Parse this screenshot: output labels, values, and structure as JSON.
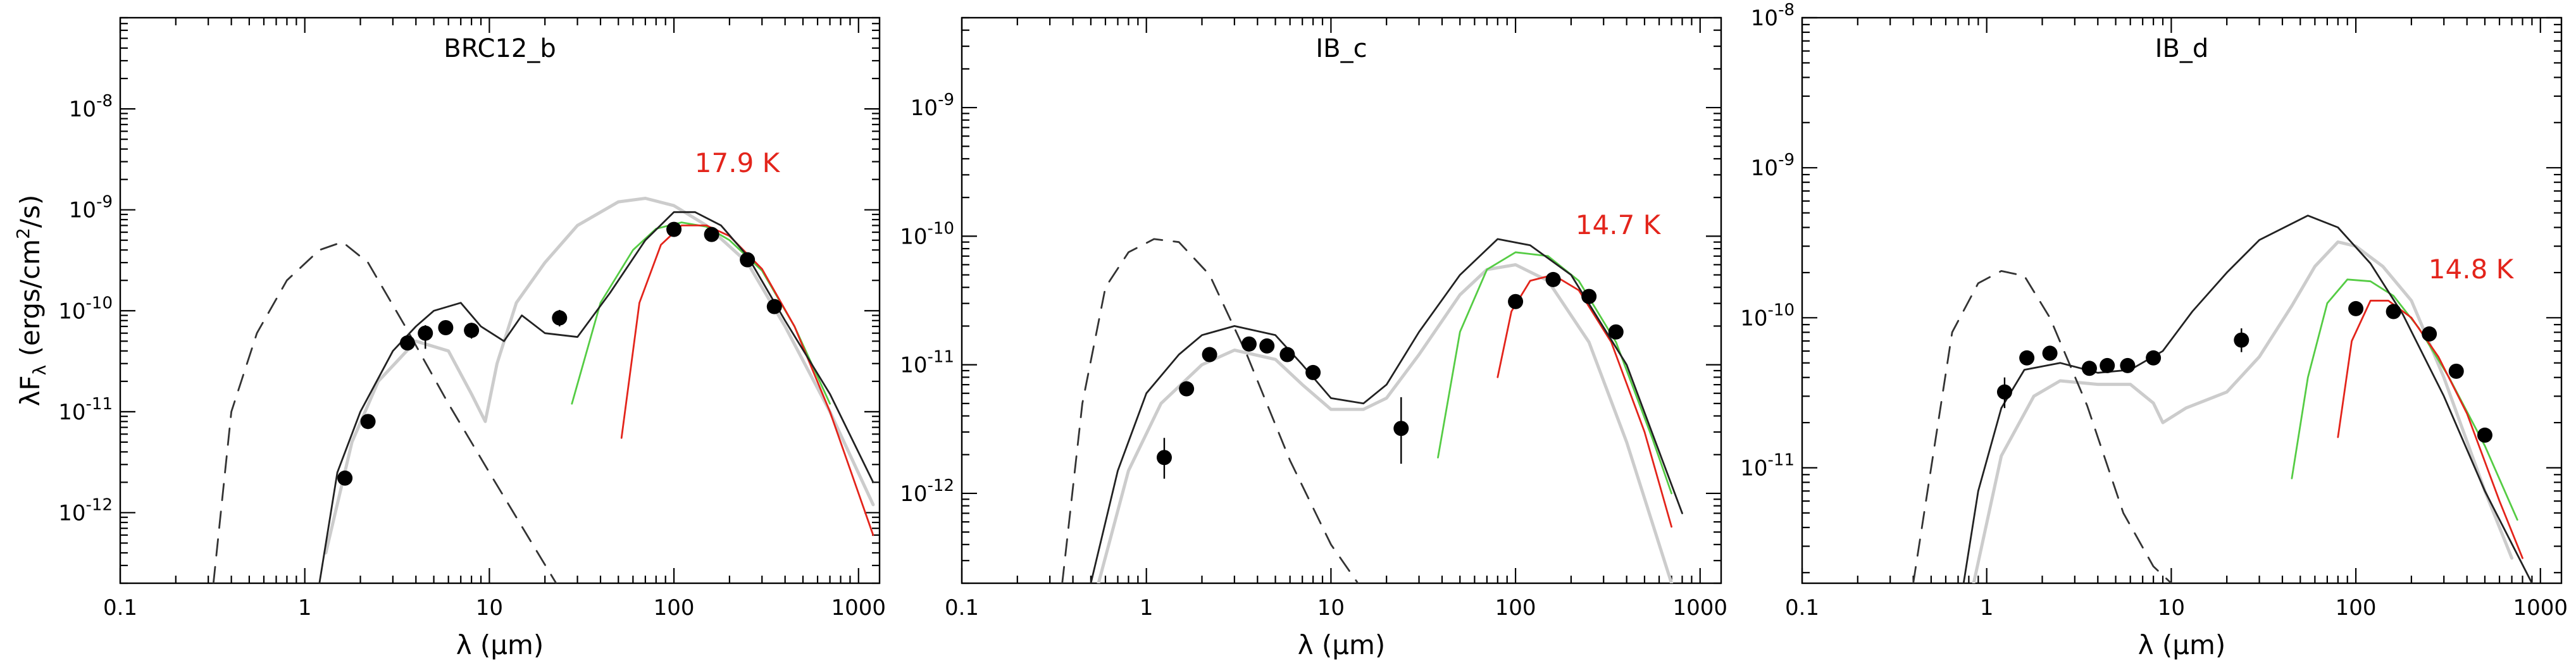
{
  "chart_data": [
    {
      "type": "line",
      "title": "BRC12_b",
      "temperature_label": "17.9 K",
      "xlabel": "λ (μm)",
      "ylabel": "λFλ (ergs/cm²/s)",
      "xscale": "log",
      "yscale": "log",
      "xlim": [
        0.1,
        1300
      ],
      "ylim": [
        2e-13,
        8e-08
      ],
      "x_ticks": [
        0.1,
        1,
        10,
        100,
        1000
      ],
      "x_tick_labels": [
        "0.1",
        "1",
        "10",
        "100",
        "1000"
      ],
      "y_ticks": [
        1e-12,
        1e-11,
        1e-10,
        1e-09,
        1e-08
      ],
      "y_tick_labels": [
        {
          "base": "10",
          "exp": "-12"
        },
        {
          "base": "10",
          "exp": "-11"
        },
        {
          "base": "10",
          "exp": "-10"
        },
        {
          "base": "10",
          "exp": "-9"
        },
        {
          "base": "10",
          "exp": "-8"
        }
      ],
      "series": [
        {
          "name": "stellar photosphere",
          "style": "dashed",
          "color": "#333333",
          "x": [
            0.32,
            0.4,
            0.55,
            0.8,
            1.2,
            1.6,
            2.2,
            3.5,
            6,
            10,
            16,
            23
          ],
          "y": [
            2e-13,
            1e-11,
            6e-11,
            2e-10,
            4e-10,
            4.8e-10,
            3e-10,
            7e-11,
            1.2e-11,
            2.5e-12,
            6e-13,
            2e-13
          ]
        },
        {
          "name": "best-fit model",
          "style": "solid",
          "color": "#222222",
          "x": [
            1.2,
            1.5,
            2,
            3,
            4,
            5,
            7,
            9,
            12,
            15,
            20,
            30,
            45,
            70,
            100,
            130,
            180,
            250,
            400,
            700,
            1200
          ],
          "y": [
            2e-13,
            2.5e-12,
            1e-11,
            4e-11,
            7e-11,
            1e-10,
            1.2e-10,
            7e-11,
            5e-11,
            9e-11,
            6e-11,
            5.5e-11,
            1.5e-10,
            5e-10,
            9.5e-10,
            9.5e-10,
            7e-10,
            3.5e-10,
            8e-11,
            1.5e-11,
            2e-12
          ]
        },
        {
          "name": "alternative model",
          "style": "solid",
          "color": "#cccccc",
          "x": [
            1.3,
            1.8,
            2.5,
            4,
            6,
            8,
            9.5,
            11,
            14,
            20,
            30,
            50,
            70,
            100,
            150,
            250,
            400,
            700,
            1200
          ],
          "y": [
            4e-13,
            5e-12,
            2e-11,
            5e-11,
            4e-11,
            1.5e-11,
            8e-12,
            3e-11,
            1.2e-10,
            3e-10,
            7e-10,
            1.2e-09,
            1.3e-09,
            1.1e-09,
            7e-10,
            3e-10,
            7e-11,
            1e-11,
            1.2e-12
          ]
        },
        {
          "name": "greybody fit (green)",
          "style": "solid",
          "color": "#55cc44",
          "x": [
            28,
            40,
            60,
            80,
            110,
            150,
            200,
            300,
            450,
            700
          ],
          "y": [
            1.2e-11,
            1.2e-10,
            4e-10,
            6.5e-10,
            7.5e-10,
            6.8e-10,
            5e-10,
            2.5e-10,
            7e-11,
            1.2e-11
          ]
        },
        {
          "name": "greybody fit (red)",
          "style": "solid",
          "color": "#e3241b",
          "x": [
            52,
            65,
            85,
            110,
            150,
            200,
            300,
            450,
            700,
            1200
          ],
          "y": [
            5.5e-12,
            1.2e-10,
            4.5e-10,
            7e-10,
            7e-10,
            5.5e-10,
            2.6e-10,
            7e-11,
            1e-11,
            6e-13
          ]
        }
      ],
      "points": {
        "x": [
          1.65,
          2.2,
          3.6,
          4.5,
          5.8,
          8,
          24,
          100,
          160,
          250,
          350
        ],
        "y": [
          2.2e-12,
          8e-12,
          4.8e-11,
          6e-11,
          6.8e-11,
          6.4e-11,
          8.5e-11,
          6.4e-10,
          5.7e-10,
          3.2e-10,
          1.1e-10
        ],
        "err_lo": [
          null,
          null,
          null,
          4.2e-11,
          null,
          5.3e-11,
          7e-11,
          null,
          null,
          null,
          null
        ],
        "err_hi": [
          null,
          null,
          null,
          7.2e-11,
          null,
          7.6e-11,
          1.02e-10,
          null,
          null,
          null,
          null
        ]
      }
    },
    {
      "type": "line",
      "title": "IB_c",
      "temperature_label": "14.7 K",
      "xlabel": "λ (μm)",
      "ylabel": "",
      "xscale": "log",
      "yscale": "log",
      "xlim": [
        0.1,
        1300
      ],
      "ylim": [
        2e-13,
        5e-09
      ],
      "x_ticks": [
        0.1,
        1,
        10,
        100,
        1000
      ],
      "x_tick_labels": [
        "0.1",
        "1",
        "10",
        "100",
        "1000"
      ],
      "y_ticks": [
        1e-12,
        1e-11,
        1e-10,
        1e-09
      ],
      "y_tick_labels": [
        {
          "base": "10",
          "exp": "-12"
        },
        {
          "base": "10",
          "exp": "-11"
        },
        {
          "base": "10",
          "exp": "-10"
        },
        {
          "base": "10",
          "exp": "-9"
        }
      ],
      "series": [
        {
          "name": "stellar photosphere",
          "style": "dashed",
          "color": "#333333",
          "x": [
            0.35,
            0.45,
            0.6,
            0.8,
            1.1,
            1.5,
            2.2,
            3.5,
            6,
            10,
            14
          ],
          "y": [
            2e-13,
            5e-12,
            4e-11,
            7.5e-11,
            9.5e-11,
            9e-11,
            5e-11,
            1.2e-11,
            1.8e-12,
            4e-13,
            2e-13
          ]
        },
        {
          "name": "best-fit model",
          "style": "solid",
          "color": "#222222",
          "x": [
            0.5,
            0.7,
            1,
            1.5,
            2,
            3,
            5,
            7,
            10,
            15,
            20,
            30,
            50,
            80,
            120,
            200,
            400,
            800
          ],
          "y": [
            2e-13,
            1.5e-12,
            6e-12,
            1.2e-11,
            1.7e-11,
            2e-11,
            1.7e-11,
            1e-11,
            5.5e-12,
            5e-12,
            7e-12,
            1.8e-11,
            5e-11,
            9.5e-11,
            8.5e-11,
            5e-11,
            1e-11,
            7e-13
          ]
        },
        {
          "name": "alternative model",
          "style": "solid",
          "color": "#cccccc",
          "x": [
            0.55,
            0.8,
            1.2,
            2,
            3,
            5,
            7,
            10,
            15,
            20,
            30,
            50,
            70,
            100,
            150,
            250,
            400,
            700
          ],
          "y": [
            2e-13,
            1.5e-12,
            5e-12,
            1e-11,
            1.3e-11,
            1.1e-11,
            7e-12,
            4.5e-12,
            4.5e-12,
            5.5e-12,
            1.2e-11,
            3.5e-11,
            5.5e-11,
            6e-11,
            4.5e-11,
            1.5e-11,
            2.5e-12,
            2e-13
          ]
        },
        {
          "name": "greybody fit (green)",
          "style": "solid",
          "color": "#55cc44",
          "x": [
            38,
            50,
            70,
            100,
            150,
            220,
            350,
            550,
            700
          ],
          "y": [
            1.9e-12,
            1.8e-11,
            5.5e-11,
            7.5e-11,
            7e-11,
            4.5e-11,
            1.5e-11,
            2.7e-12,
            1e-12
          ]
        },
        {
          "name": "greybody fit (red)",
          "style": "solid",
          "color": "#e3241b",
          "x": [
            80,
            95,
            120,
            160,
            220,
            330,
            500,
            700
          ],
          "y": [
            8e-12,
            2.6e-11,
            4.5e-11,
            5e-11,
            3.8e-11,
            1.5e-11,
            3e-12,
            5.5e-13
          ]
        }
      ],
      "points": {
        "x": [
          1.25,
          1.65,
          2.2,
          3.6,
          4.5,
          5.8,
          8,
          24,
          100,
          160,
          250,
          350
        ],
        "y": [
          1.9e-12,
          6.5e-12,
          1.2e-11,
          1.45e-11,
          1.4e-11,
          1.2e-11,
          8.7e-12,
          3.2e-12,
          3.1e-11,
          4.6e-11,
          3.4e-11,
          1.8e-11
        ],
        "err_lo": [
          1.3e-12,
          null,
          null,
          null,
          null,
          null,
          null,
          1.7e-12,
          null,
          null,
          null,
          null
        ],
        "err_hi": [
          2.7e-12,
          null,
          null,
          null,
          null,
          null,
          null,
          5.6e-12,
          null,
          null,
          null,
          null
        ]
      }
    },
    {
      "type": "line",
      "title": "IB_d",
      "temperature_label": "14.8 K",
      "xlabel": "λ (μm)",
      "ylabel": "",
      "xscale": "log",
      "yscale": "log",
      "xlim": [
        0.1,
        1300
      ],
      "ylim": [
        1.7e-12,
        1e-08
      ],
      "x_ticks": [
        0.1,
        1,
        10,
        100,
        1000
      ],
      "x_tick_labels": [
        "0.1",
        "1",
        "10",
        "100",
        "1000"
      ],
      "y_ticks": [
        1e-11,
        1e-10,
        1e-09,
        1e-08
      ],
      "y_tick_labels": [
        {
          "base": "10",
          "exp": "-11"
        },
        {
          "base": "10",
          "exp": "-10"
        },
        {
          "base": "10",
          "exp": "-9"
        },
        {
          "base": "10",
          "exp": "-8"
        }
      ],
      "series": [
        {
          "name": "stellar photosphere",
          "style": "dashed",
          "color": "#333333",
          "x": [
            0.4,
            0.5,
            0.65,
            0.9,
            1.2,
            1.6,
            2.2,
            3.5,
            5.5,
            8,
            10
          ],
          "y": [
            1.7e-12,
            1e-11,
            8e-11,
            1.7e-10,
            2.05e-10,
            1.9e-10,
            1e-10,
            2.6e-11,
            5e-12,
            2.2e-12,
            1.7e-12
          ]
        },
        {
          "name": "best-fit model",
          "style": "solid",
          "color": "#222222",
          "x": [
            0.75,
            0.9,
            1.2,
            1.6,
            2.5,
            4,
            6,
            9,
            13,
            20,
            30,
            55,
            80,
            120,
            180,
            300,
            500,
            900
          ],
          "y": [
            1.7e-12,
            7e-12,
            2.5e-11,
            4.5e-11,
            5e-11,
            4.3e-11,
            4.5e-11,
            6e-11,
            1.1e-10,
            2e-10,
            3.3e-10,
            4.8e-10,
            4e-10,
            2.3e-10,
            1.05e-10,
            3e-11,
            7e-12,
            1.7e-12
          ]
        },
        {
          "name": "alternative model",
          "style": "solid",
          "color": "#cccccc",
          "x": [
            0.85,
            1.2,
            1.8,
            2.5,
            4,
            6,
            8,
            9,
            12,
            20,
            30,
            45,
            60,
            80,
            100,
            140,
            200,
            300,
            500,
            700
          ],
          "y": [
            1.7e-12,
            1.2e-11,
            3e-11,
            3.8e-11,
            3.6e-11,
            3.6e-11,
            2.7e-11,
            2e-11,
            2.5e-11,
            3.2e-11,
            5.5e-11,
            1.2e-10,
            2.2e-10,
            3.2e-10,
            3e-10,
            2.2e-10,
            1.3e-10,
            4e-11,
            7e-12,
            2.5e-12
          ]
        },
        {
          "name": "greybody fit (green)",
          "style": "solid",
          "color": "#55cc44",
          "x": [
            45,
            55,
            70,
            90,
            120,
            160,
            220,
            320,
            500,
            750
          ],
          "y": [
            8.5e-12,
            4e-11,
            1.25e-10,
            1.8e-10,
            1.75e-10,
            1.4e-10,
            8.5e-11,
            4e-11,
            1.4e-11,
            4.5e-12
          ]
        },
        {
          "name": "greybody fit (red)",
          "style": "solid",
          "color": "#e3241b",
          "x": [
            80,
            95,
            120,
            150,
            200,
            280,
            400,
            600,
            800
          ],
          "y": [
            1.6e-11,
            7e-11,
            1.3e-10,
            1.3e-10,
            1e-10,
            5.5e-11,
            2.3e-11,
            6e-12,
            2.5e-12
          ]
        }
      ],
      "points": {
        "x": [
          1.25,
          1.65,
          2.2,
          3.6,
          4.5,
          5.8,
          8,
          24,
          100,
          160,
          250,
          350,
          500
        ],
        "y": [
          3.2e-11,
          5.4e-11,
          5.8e-11,
          4.6e-11,
          4.8e-11,
          4.8e-11,
          5.4e-11,
          7.1e-11,
          1.15e-10,
          1.1e-10,
          7.8e-11,
          4.4e-11,
          1.65e-11
        ],
        "err_lo": [
          2.5e-11,
          null,
          null,
          null,
          null,
          null,
          null,
          5.9e-11,
          null,
          null,
          null,
          null,
          null
        ],
        "err_hi": [
          4e-11,
          null,
          null,
          null,
          null,
          null,
          null,
          8.5e-11,
          null,
          null,
          null,
          null,
          null
        ]
      }
    }
  ]
}
